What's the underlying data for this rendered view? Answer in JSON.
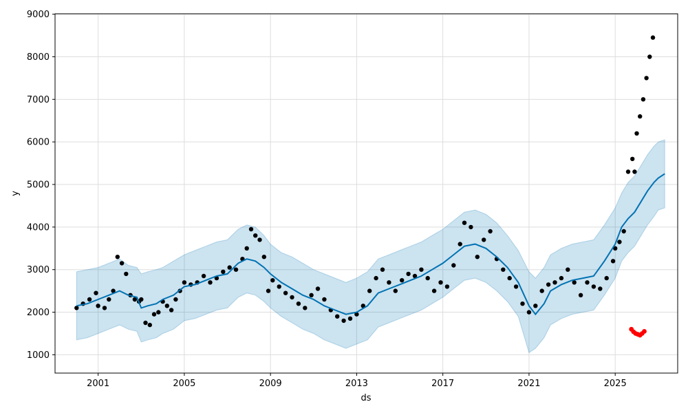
{
  "chart_data": {
    "type": "line",
    "title": "",
    "xlabel": "ds",
    "ylabel": "y",
    "xlim": [
      1999.0,
      2027.9
    ],
    "ylim": [
      570,
      9010
    ],
    "grid": true,
    "x_ticks": [
      2001,
      2005,
      2009,
      2013,
      2017,
      2021,
      2025
    ],
    "y_ticks": [
      1000,
      2000,
      3000,
      4000,
      5000,
      6000,
      7000,
      8000,
      9000
    ],
    "colors": {
      "observed": "#000000",
      "forecast": "#0072B2",
      "interval": "#0072B2",
      "highlight": "#FF0000",
      "grid": "#dddddd"
    },
    "series": [
      {
        "kind": "observed_points",
        "x": [
          2000.0,
          2000.3,
          2000.6,
          2000.9,
          2001.0,
          2001.3,
          2001.5,
          2001.7,
          2001.9,
          2002.1,
          2002.3,
          2002.5,
          2002.7,
          2002.9,
          2003.0,
          2003.2,
          2003.4,
          2003.6,
          2003.8,
          2004.0,
          2004.2,
          2004.4,
          2004.6,
          2004.8,
          2005.0,
          2005.3,
          2005.6,
          2005.9,
          2006.2,
          2006.5,
          2006.8,
          2007.1,
          2007.4,
          2007.7,
          2007.9,
          2008.1,
          2008.3,
          2008.5,
          2008.7,
          2008.9,
          2009.1,
          2009.4,
          2009.7,
          2010.0,
          2010.3,
          2010.6,
          2010.9,
          2011.2,
          2011.5,
          2011.8,
          2012.1,
          2012.4,
          2012.7,
          2013.0,
          2013.3,
          2013.6,
          2013.9,
          2014.2,
          2014.5,
          2014.8,
          2015.1,
          2015.4,
          2015.7,
          2016.0,
          2016.3,
          2016.6,
          2016.9,
          2017.2,
          2017.5,
          2017.8,
          2018.0,
          2018.3,
          2018.6,
          2018.9,
          2019.2,
          2019.5,
          2019.8,
          2020.1,
          2020.4,
          2020.7,
          2021.0,
          2021.3,
          2021.6,
          2021.9,
          2022.2,
          2022.5,
          2022.8,
          2023.1,
          2023.4,
          2023.7,
          2024.0,
          2024.3,
          2024.6,
          2024.9,
          2025.0,
          2025.2,
          2025.4,
          2025.6,
          2025.8,
          2025.9,
          2026.0,
          2026.15,
          2026.3,
          2026.45,
          2026.6,
          2026.75
        ],
        "y": [
          2100,
          2200,
          2300,
          2450,
          2150,
          2100,
          2300,
          2500,
          3300,
          3150,
          2900,
          2400,
          2300,
          2250,
          2300,
          1750,
          1700,
          1950,
          2000,
          2250,
          2150,
          2050,
          2300,
          2500,
          2700,
          2650,
          2700,
          2850,
          2700,
          2800,
          2950,
          3050,
          3000,
          3250,
          3500,
          3950,
          3800,
          3700,
          3300,
          2500,
          2750,
          2600,
          2450,
          2350,
          2200,
          2100,
          2400,
          2550,
          2300,
          2050,
          1900,
          1800,
          1850,
          1950,
          2150,
          2500,
          2800,
          3000,
          2700,
          2500,
          2750,
          2900,
          2850,
          3000,
          2800,
          2500,
          2700,
          2600,
          3100,
          3600,
          4100,
          4000,
          3300,
          3700,
          3900,
          3250,
          3000,
          2800,
          2600,
          2200,
          2000,
          2150,
          2500,
          2650,
          2700,
          2800,
          3000,
          2700,
          2400,
          2700,
          2600,
          2550,
          2800,
          3200,
          3500,
          3650,
          3900,
          5300,
          5600,
          5300,
          6200,
          6600,
          7000,
          7500,
          8000,
          8450
        ]
      },
      {
        "kind": "recent_points",
        "x": [
          2025.75,
          2025.85,
          2025.95,
          2026.05,
          2026.15,
          2026.25,
          2026.35
        ],
        "y": [
          1600,
          1540,
          1500,
          1480,
          1460,
          1500,
          1550
        ]
      },
      {
        "kind": "forecast_line",
        "x": [
          2000.0,
          2000.5,
          2001.0,
          2001.5,
          2002.0,
          2002.4,
          2002.8,
          2003.0,
          2003.3,
          2003.7,
          2004.0,
          2004.5,
          2005.0,
          2005.5,
          2006.0,
          2006.5,
          2007.0,
          2007.5,
          2007.9,
          2008.3,
          2008.7,
          2009.0,
          2009.5,
          2010.0,
          2010.5,
          2011.0,
          2011.5,
          2012.0,
          2012.5,
          2013.0,
          2013.5,
          2014.0,
          2014.5,
          2015.0,
          2015.5,
          2016.0,
          2016.5,
          2017.0,
          2017.5,
          2018.0,
          2018.5,
          2019.0,
          2019.5,
          2020.0,
          2020.5,
          2021.0,
          2021.3,
          2021.7,
          2022.0,
          2022.5,
          2023.0,
          2023.5,
          2024.0,
          2024.5,
          2025.0,
          2025.3,
          2025.6,
          2025.9,
          2026.2,
          2026.5,
          2026.8,
          2027.0,
          2027.3
        ],
        "y": [
          2150,
          2200,
          2300,
          2400,
          2500,
          2400,
          2350,
          2100,
          2150,
          2200,
          2300,
          2400,
          2600,
          2650,
          2750,
          2850,
          2900,
          3150,
          3250,
          3200,
          3050,
          2900,
          2700,
          2550,
          2400,
          2300,
          2150,
          2050,
          1950,
          2000,
          2150,
          2450,
          2550,
          2650,
          2750,
          2850,
          3000,
          3150,
          3350,
          3550,
          3600,
          3500,
          3300,
          3050,
          2700,
          2150,
          1950,
          2200,
          2500,
          2650,
          2750,
          2800,
          2850,
          3200,
          3600,
          4000,
          4200,
          4350,
          4600,
          4850,
          5050,
          5150,
          5250
        ]
      },
      {
        "kind": "interval_upper",
        "x": [
          2000.0,
          2000.5,
          2001.0,
          2001.5,
          2002.0,
          2002.4,
          2002.8,
          2003.0,
          2003.3,
          2003.7,
          2004.0,
          2004.5,
          2005.0,
          2005.5,
          2006.0,
          2006.5,
          2007.0,
          2007.5,
          2007.9,
          2008.3,
          2008.7,
          2009.0,
          2009.5,
          2010.0,
          2010.5,
          2011.0,
          2011.5,
          2012.0,
          2012.5,
          2013.0,
          2013.5,
          2014.0,
          2014.5,
          2015.0,
          2015.5,
          2016.0,
          2016.5,
          2017.0,
          2017.5,
          2018.0,
          2018.5,
          2019.0,
          2019.5,
          2020.0,
          2020.5,
          2021.0,
          2021.3,
          2021.7,
          2022.0,
          2022.5,
          2023.0,
          2023.5,
          2024.0,
          2024.5,
          2025.0,
          2025.3,
          2025.6,
          2025.9,
          2026.2,
          2026.5,
          2026.8,
          2027.0,
          2027.3
        ],
        "y": [
          2950,
          3000,
          3050,
          3150,
          3250,
          3100,
          3050,
          2900,
          2950,
          3000,
          3050,
          3200,
          3350,
          3450,
          3550,
          3650,
          3700,
          3950,
          4050,
          4000,
          3800,
          3600,
          3400,
          3300,
          3150,
          3000,
          2900,
          2800,
          2700,
          2800,
          2950,
          3250,
          3350,
          3450,
          3550,
          3650,
          3800,
          3950,
          4150,
          4350,
          4400,
          4300,
          4100,
          3800,
          3450,
          2950,
          2800,
          3050,
          3350,
          3500,
          3600,
          3650,
          3700,
          4050,
          4450,
          4800,
          5050,
          5200,
          5450,
          5700,
          5900,
          6000,
          6050
        ]
      },
      {
        "kind": "interval_lower",
        "x": [
          2000.0,
          2000.5,
          2001.0,
          2001.5,
          2002.0,
          2002.4,
          2002.8,
          2003.0,
          2003.3,
          2003.7,
          2004.0,
          2004.5,
          2005.0,
          2005.5,
          2006.0,
          2006.5,
          2007.0,
          2007.5,
          2007.9,
          2008.3,
          2008.7,
          2009.0,
          2009.5,
          2010.0,
          2010.5,
          2011.0,
          2011.5,
          2012.0,
          2012.5,
          2013.0,
          2013.5,
          2014.0,
          2014.5,
          2015.0,
          2015.5,
          2016.0,
          2016.5,
          2017.0,
          2017.5,
          2018.0,
          2018.5,
          2019.0,
          2019.5,
          2020.0,
          2020.5,
          2021.0,
          2021.3,
          2021.7,
          2022.0,
          2022.5,
          2023.0,
          2023.5,
          2024.0,
          2024.5,
          2025.0,
          2025.3,
          2025.6,
          2025.9,
          2026.2,
          2026.5,
          2026.8,
          2027.0,
          2027.3
        ],
        "y": [
          1350,
          1400,
          1500,
          1600,
          1700,
          1600,
          1550,
          1300,
          1350,
          1400,
          1500,
          1600,
          1800,
          1850,
          1950,
          2050,
          2100,
          2350,
          2450,
          2400,
          2250,
          2100,
          1900,
          1750,
          1600,
          1500,
          1350,
          1250,
          1150,
          1250,
          1350,
          1650,
          1750,
          1850,
          1950,
          2050,
          2200,
          2350,
          2550,
          2750,
          2800,
          2700,
          2500,
          2250,
          1900,
          1050,
          1150,
          1400,
          1700,
          1850,
          1950,
          2000,
          2050,
          2400,
          2800,
          3200,
          3400,
          3550,
          3800,
          4050,
          4250,
          4400,
          4450
        ]
      }
    ]
  }
}
